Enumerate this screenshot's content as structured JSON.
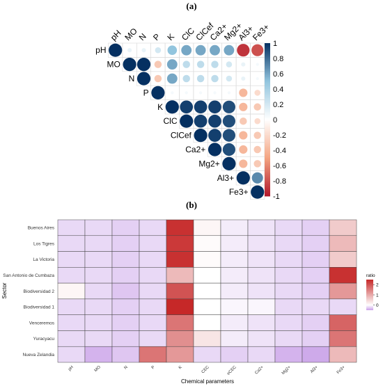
{
  "colors": {
    "neg_strong": "#b2182b",
    "neutral": "#ffffff",
    "pos_strong": "#053061",
    "grid": "#d9d9d9",
    "heat_low": "#c9a0e8",
    "heat_mid": "#ffffff",
    "heat_high": "#c62828"
  },
  "chart_data": [
    {
      "panel_label": "(a)",
      "type": "heatmap",
      "subtype": "correlation-matrix-upper-circles",
      "variables": [
        "pH",
        "MO",
        "N",
        "P",
        "K",
        "ClC",
        "ClCef",
        "Ca2+",
        "Mg2+",
        "Al3+",
        "Fe3+"
      ],
      "matrix": [
        [
          1,
          0.1,
          0.1,
          0.2,
          0.5,
          0.6,
          0.6,
          0.6,
          0.6,
          -0.9,
          -0.8
        ],
        [
          0.1,
          1,
          1,
          -0.3,
          0.6,
          0.3,
          0.3,
          0.3,
          0.2,
          0.1,
          0.05
        ],
        [
          0.1,
          1,
          1,
          -0.3,
          0.6,
          0.3,
          0.3,
          0.3,
          0.2,
          0.1,
          0.05
        ],
        [
          0.2,
          -0.3,
          -0.3,
          1,
          0.05,
          0.05,
          0.05,
          0.05,
          0.05,
          -0.4,
          -0.2
        ],
        [
          0.5,
          0.6,
          0.6,
          0.05,
          1,
          0.95,
          0.95,
          0.95,
          0.9,
          -0.4,
          -0.3
        ],
        [
          0.6,
          0.3,
          0.3,
          0.05,
          0.95,
          1,
          0.95,
          0.95,
          0.9,
          -0.3,
          -0.2
        ],
        [
          0.6,
          0.3,
          0.3,
          0.05,
          0.95,
          0.95,
          1,
          0.95,
          0.9,
          -0.4,
          -0.3
        ],
        [
          0.6,
          0.3,
          0.3,
          0.05,
          0.95,
          0.95,
          0.95,
          1,
          0.9,
          -0.4,
          -0.3
        ],
        [
          0.6,
          0.2,
          0.2,
          0.05,
          0.9,
          0.9,
          0.9,
          0.9,
          1,
          -0.4,
          -0.3
        ],
        [
          -0.9,
          0.1,
          0.1,
          -0.4,
          -0.4,
          -0.3,
          -0.4,
          -0.4,
          -0.4,
          1,
          0.7
        ],
        [
          -0.8,
          0.05,
          0.05,
          -0.2,
          -0.3,
          -0.2,
          -0.3,
          -0.3,
          -0.3,
          0.7,
          1
        ]
      ],
      "colorbar_ticks": [
        "1",
        "0.8",
        "0.6",
        "0.4",
        "0.2",
        "0",
        "-0.2",
        "-0.4",
        "-0.6",
        "-0.8",
        "-1"
      ],
      "range": [
        -1,
        1
      ]
    },
    {
      "panel_label": "(b)",
      "type": "heatmap",
      "xlabel": "Chemical parameters",
      "ylabel": "Sector",
      "legend_title": "ratio",
      "legend_ticks": [
        "2",
        "1",
        "0"
      ],
      "legend_range": [
        -0.5,
        2.5
      ],
      "rows": [
        "Buenos Aires",
        "Los Tigres",
        "La Victoria",
        "San Antonio de Cumbaza",
        "Biodiversidad 2",
        "Biodiversidad 1",
        "Venceremos",
        "Yuracyacu",
        "Nueva Zelandia"
      ],
      "columns": [
        "pH",
        "MO",
        "N",
        "P",
        "K",
        "CEC",
        "eCEC",
        "Ca2+",
        "Mg2+",
        "Al3+",
        "Fe3+"
      ],
      "values": [
        [
          -0.2,
          -0.2,
          -0.25,
          -0.2,
          2.4,
          0.1,
          -0.1,
          -0.15,
          -0.2,
          -0.25,
          0.6
        ],
        [
          -0.2,
          -0.2,
          -0.25,
          -0.2,
          2.3,
          0.05,
          -0.1,
          -0.15,
          -0.2,
          -0.25,
          0.8
        ],
        [
          -0.2,
          -0.2,
          -0.25,
          -0.2,
          2.4,
          0.05,
          -0.1,
          -0.15,
          -0.2,
          -0.25,
          0.6
        ],
        [
          -0.2,
          -0.2,
          -0.25,
          -0.2,
          0.8,
          0.0,
          -0.1,
          -0.15,
          -0.2,
          -0.25,
          2.4
        ],
        [
          0.1,
          -0.2,
          -0.3,
          -0.2,
          2.0,
          0.0,
          -0.1,
          -0.15,
          -0.2,
          -0.25,
          1.2
        ],
        [
          -0.2,
          -0.2,
          -0.25,
          -0.2,
          2.6,
          0.0,
          -0.05,
          -0.05,
          -0.2,
          -0.2,
          -0.2
        ],
        [
          -0.2,
          -0.2,
          -0.25,
          -0.2,
          1.6,
          0.0,
          -0.1,
          -0.15,
          -0.2,
          -0.25,
          1.8
        ],
        [
          -0.2,
          -0.2,
          -0.25,
          -0.2,
          1.3,
          0.3,
          -0.1,
          -0.15,
          -0.2,
          -0.25,
          1.6
        ],
        [
          -0.2,
          -0.4,
          -0.3,
          1.6,
          1.2,
          -0.2,
          -0.25,
          -0.2,
          -0.4,
          -0.45,
          0.8
        ]
      ]
    }
  ]
}
